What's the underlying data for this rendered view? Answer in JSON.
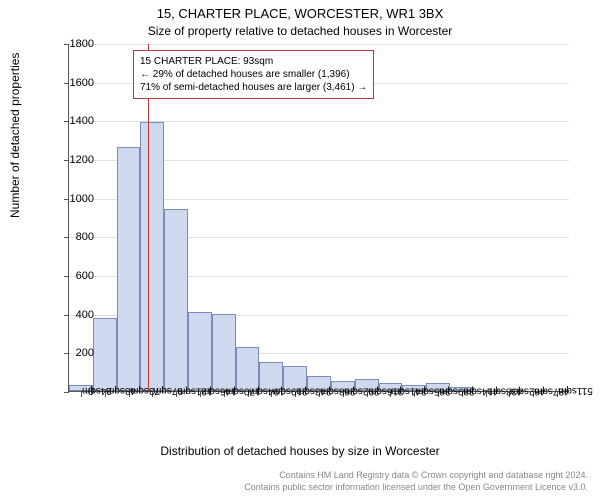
{
  "chart": {
    "type": "histogram",
    "title_main": "15, CHARTER PLACE, WORCESTER, WR1 3BX",
    "title_sub": "Size of property relative to detached houses in Worcester",
    "title_main_fontsize": 13,
    "title_sub_fontsize": 12,
    "ylabel": "Number of detached properties",
    "xlabel": "Distribution of detached houses by size in Worcester",
    "label_fontsize": 12,
    "tick_fontsize": 11,
    "background_color": "#ffffff",
    "grid_color": "#e0e0e0",
    "bar_fill": "#cfd9ee",
    "bar_border": "#7a8db8",
    "reference_line_color": "#b33a3a",
    "reference_x": 93,
    "ylim": [
      0,
      1800
    ],
    "ytick_step": 200,
    "xlim": [
      12,
      524
    ],
    "bar_width_ratio": 1.0,
    "categories": [
      "24sqm",
      "48sqm",
      "73sqm",
      "97sqm",
      "121sqm",
      "146sqm",
      "170sqm",
      "194sqm",
      "219sqm",
      "243sqm",
      "268sqm",
      "292sqm",
      "316sqm",
      "341sqm",
      "365sqm",
      "389sqm",
      "414sqm",
      "438sqm",
      "462sqm",
      "487sqm",
      "511sqm"
    ],
    "values": [
      30,
      380,
      1260,
      1390,
      940,
      410,
      400,
      230,
      150,
      130,
      80,
      50,
      60,
      40,
      30,
      40,
      20,
      0,
      0,
      0,
      0
    ],
    "annotation": {
      "lines": [
        "15 CHARTER PLACE: 93sqm",
        "← 29% of detached houses are smaller (1,396)",
        "71% of semi-detached houses are larger (3,461) →"
      ],
      "border_color": "#b33a3a",
      "fontsize": 10
    },
    "footer1": "Contains HM Land Registry data © Crown copyright and database right 2024.",
    "footer2": "Contains public sector information licensed under the Open Government Licence v3.0.",
    "footer_color": "#888888",
    "footer_fontsize": 9
  }
}
